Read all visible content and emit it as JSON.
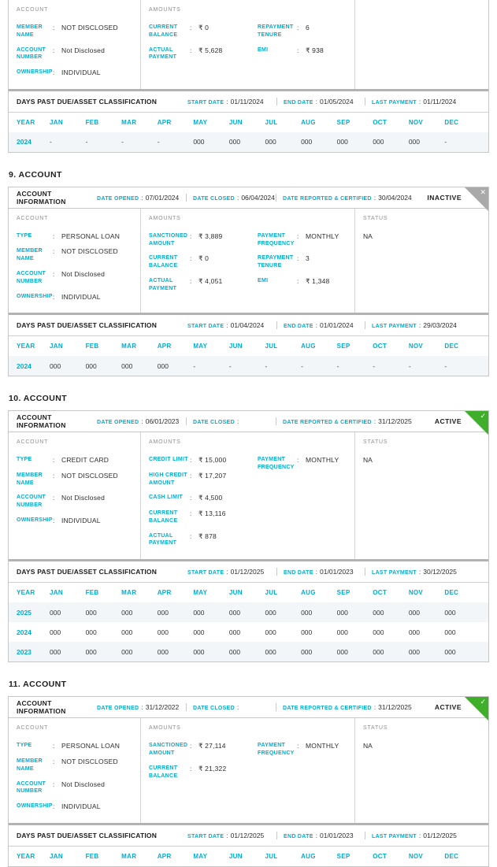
{
  "colors": {
    "accent": "#00ADD2",
    "active_green": "#3FAE2A",
    "inactive_gray": "#A9A9A9"
  },
  "labels": {
    "account_information": "ACCOUNT INFORMATION",
    "date_opened": "DATE OPENED",
    "date_closed": "DATE CLOSED",
    "date_reported": "DATE REPORTED & CERTIFIED",
    "dpd_title": "DAYS PAST DUE/ASSET CLASSIFICATION",
    "start_date": "START DATE",
    "end_date": "END DATE",
    "last_payment": "LAST PAYMENT",
    "year": "YEAR"
  },
  "months": [
    "JAN",
    "FEB",
    "MAR",
    "APR",
    "MAY",
    "JUN",
    "JUL",
    "AUG",
    "SEP",
    "OCT",
    "NOV",
    "DEC"
  ],
  "accounts": [
    {
      "heading": null,
      "clipped_top": true,
      "header": null,
      "status_banner": null,
      "columns": {
        "account": {
          "label": "ACCOUNT",
          "fields": [
            {
              "label": "MEMBER NAME",
              "value": "NOT DISCLOSED"
            },
            {
              "label": "ACCOUNT NUMBER",
              "value": "Not Disclosed"
            },
            {
              "label": "OWNERSHIP",
              "value": "INDIVIDUAL"
            }
          ]
        },
        "amounts": {
          "label": "AMOUNTS",
          "col1": [
            {
              "label": "CURRENT BALANCE",
              "value": "₹ 0"
            },
            {
              "label": "ACTUAL PAYMENT",
              "value": "₹ 5,628"
            }
          ],
          "col2": [
            {
              "label": "REPAYMENT TENURE",
              "value": "6"
            },
            {
              "label": "EMI",
              "value": "₹ 938"
            }
          ]
        },
        "status": {
          "label": "",
          "value": ""
        }
      },
      "dpd": {
        "start_date": "01/11/2024",
        "end_date": "01/05/2024",
        "last_payment": "01/11/2024"
      },
      "rows": [
        {
          "year": "2024",
          "values": [
            "-",
            "-",
            "-",
            "-",
            "000",
            "000",
            "000",
            "000",
            "000",
            "000",
            "000",
            "-"
          ]
        }
      ]
    },
    {
      "heading": "9. ACCOUNT",
      "clipped_top": false,
      "header": {
        "date_opened": "07/01/2024",
        "date_closed": "06/04/2024",
        "date_reported": "30/04/2024"
      },
      "status_banner": {
        "label": "INACTIVE",
        "type": "inactive",
        "icon": "✕"
      },
      "columns": {
        "account": {
          "label": "ACCOUNT",
          "fields": [
            {
              "label": "TYPE",
              "value": "PERSONAL LOAN"
            },
            {
              "label": "MEMBER NAME",
              "value": "NOT DISCLOSED"
            },
            {
              "label": "ACCOUNT NUMBER",
              "value": "Not Disclosed"
            },
            {
              "label": "OWNERSHIP",
              "value": "INDIVIDUAL"
            }
          ]
        },
        "amounts": {
          "label": "AMOUNTS",
          "col1": [
            {
              "label": "SANCTIONED AMOUNT",
              "value": "₹ 3,889"
            },
            {
              "label": "CURRENT BALANCE",
              "value": "₹ 0"
            },
            {
              "label": "ACTUAL PAYMENT",
              "value": "₹ 4,051"
            }
          ],
          "col2": [
            {
              "label": "PAYMENT FREQUENCY",
              "value": "MONTHLY"
            },
            {
              "label": "REPAYMENT TENURE",
              "value": "3"
            },
            {
              "label": "EMI",
              "value": "₹ 1,348"
            }
          ]
        },
        "status": {
          "label": "STATUS",
          "value": "NA"
        }
      },
      "dpd": {
        "start_date": "01/04/2024",
        "end_date": "01/01/2024",
        "last_payment": "29/03/2024"
      },
      "rows": [
        {
          "year": "2024",
          "values": [
            "000",
            "000",
            "000",
            "000",
            "-",
            "-",
            "-",
            "-",
            "-",
            "-",
            "-",
            "-"
          ]
        }
      ]
    },
    {
      "heading": "10. ACCOUNT",
      "clipped_top": false,
      "header": {
        "date_opened": "06/01/2023",
        "date_closed": "",
        "date_reported": "31/12/2025"
      },
      "status_banner": {
        "label": "ACTIVE",
        "type": "active",
        "icon": "✓"
      },
      "columns": {
        "account": {
          "label": "ACCOUNT",
          "fields": [
            {
              "label": "TYPE",
              "value": "CREDIT CARD"
            },
            {
              "label": "MEMBER NAME",
              "value": "NOT DISCLOSED"
            },
            {
              "label": "ACCOUNT NUMBER",
              "value": "Not Disclosed"
            },
            {
              "label": "OWNERSHIP",
              "value": "INDIVIDUAL"
            }
          ]
        },
        "amounts": {
          "label": "AMOUNTS",
          "col1": [
            {
              "label": "CREDIT LIMIT",
              "value": "₹ 15,000"
            },
            {
              "label": "HIGH CREDIT AMOUNT",
              "value": "₹ 17,207"
            },
            {
              "label": "CASH LIMIT",
              "value": "₹ 4,500"
            },
            {
              "label": "CURRENT BALANCE",
              "value": "₹ 13,116"
            },
            {
              "label": "ACTUAL PAYMENT",
              "value": "₹ 878"
            }
          ],
          "col2": [
            {
              "label": "PAYMENT FREQUENCY",
              "value": "MONTHLY"
            }
          ]
        },
        "status": {
          "label": "STATUS",
          "value": "NA"
        }
      },
      "dpd": {
        "start_date": "01/12/2025",
        "end_date": "01/01/2023",
        "last_payment": "30/12/2025"
      },
      "rows": [
        {
          "year": "2025",
          "values": [
            "000",
            "000",
            "000",
            "000",
            "000",
            "000",
            "000",
            "000",
            "000",
            "000",
            "000",
            "000"
          ]
        },
        {
          "year": "2024",
          "values": [
            "000",
            "000",
            "000",
            "000",
            "000",
            "000",
            "000",
            "000",
            "000",
            "000",
            "000",
            "000"
          ]
        },
        {
          "year": "2023",
          "values": [
            "000",
            "000",
            "000",
            "000",
            "000",
            "000",
            "000",
            "000",
            "000",
            "000",
            "000",
            "000"
          ]
        }
      ]
    },
    {
      "heading": "11. ACCOUNT",
      "clipped_top": false,
      "header": {
        "date_opened": "31/12/2022",
        "date_closed": "",
        "date_reported": "31/12/2025"
      },
      "status_banner": {
        "label": "ACTIVE",
        "type": "active",
        "icon": "✓"
      },
      "columns": {
        "account": {
          "label": "ACCOUNT",
          "fields": [
            {
              "label": "TYPE",
              "value": "PERSONAL LOAN"
            },
            {
              "label": "MEMBER NAME",
              "value": "NOT DISCLOSED"
            },
            {
              "label": "ACCOUNT NUMBER",
              "value": "Not Disclosed"
            },
            {
              "label": "OWNERSHIP",
              "value": "INDIVIDUAL"
            }
          ]
        },
        "amounts": {
          "label": "AMOUNTS",
          "col1": [
            {
              "label": "SANCTIONED AMOUNT",
              "value": "₹ 27,114"
            },
            {
              "label": "CURRENT BALANCE",
              "value": "₹ 21,322"
            }
          ],
          "col2": [
            {
              "label": "PAYMENT FREQUENCY",
              "value": "MONTHLY"
            }
          ]
        },
        "status": {
          "label": "STATUS",
          "value": "NA"
        }
      },
      "dpd": {
        "start_date": "01/12/2025",
        "end_date": "01/01/2023",
        "last_payment": "01/12/2025"
      },
      "rows": []
    }
  ]
}
